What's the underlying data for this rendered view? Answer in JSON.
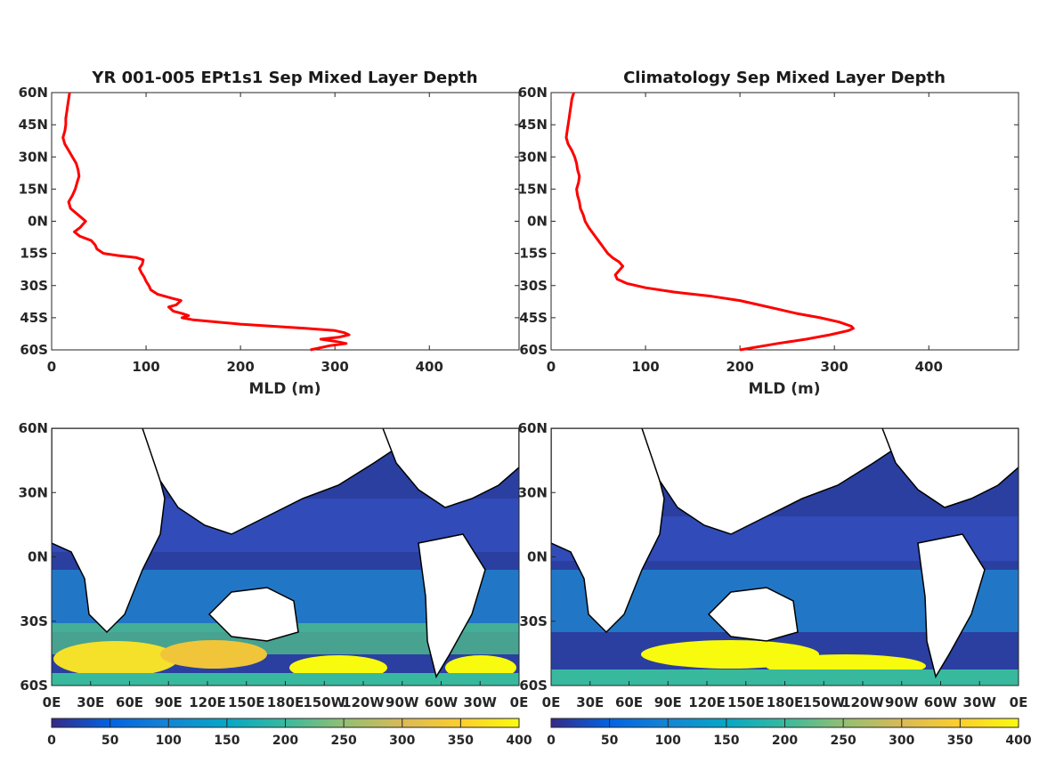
{
  "chart_data": [
    {
      "type": "line",
      "title": "YR 001-005 EPt1s1 Sep Mixed Layer Depth",
      "xlabel": "MLD (m)",
      "ylabel": "",
      "xlim": [
        0,
        495
      ],
      "ylim": [
        -60,
        60
      ],
      "xticks": [
        "0",
        "100",
        "200",
        "300",
        "400"
      ],
      "yticks": [
        "60N",
        "45N",
        "30N",
        "15N",
        "0N",
        "15S",
        "30S",
        "45S",
        "60S"
      ],
      "color": "#ff0000",
      "series": [
        {
          "y": [
            60,
            57,
            54,
            51,
            48,
            45,
            42,
            39,
            36,
            33,
            30,
            27,
            24,
            21,
            18,
            15,
            12,
            9,
            6,
            3,
            0,
            -3,
            -5,
            -7,
            -9,
            -11,
            -13,
            -15,
            -16,
            -17,
            -18,
            -20,
            -22,
            -24,
            -26,
            -28,
            -30,
            -32,
            -34,
            -36,
            -37,
            -39,
            -40,
            -42,
            -43,
            -44,
            -45,
            -46,
            -48,
            -50,
            -51,
            -52,
            -53,
            -54,
            -55,
            -56,
            -57,
            -58,
            -60
          ],
          "x": [
            19,
            18,
            17,
            16,
            15,
            15,
            14,
            12,
            14,
            18,
            22,
            26,
            28,
            29,
            27,
            25,
            22,
            18,
            20,
            28,
            36,
            30,
            24,
            30,
            42,
            46,
            48,
            55,
            70,
            90,
            97,
            96,
            93,
            95,
            98,
            100,
            103,
            105,
            112,
            128,
            137,
            132,
            124,
            129,
            138,
            145,
            138,
            150,
            200,
            270,
            300,
            310,
            315,
            305,
            285,
            300,
            312,
            295,
            274
          ]
        }
      ]
    },
    {
      "type": "line",
      "title": "Climatology Sep Mixed Layer Depth",
      "xlabel": "MLD (m)",
      "ylabel": "",
      "xlim": [
        0,
        495
      ],
      "ylim": [
        -60,
        60
      ],
      "xticks": [
        "0",
        "100",
        "200",
        "300",
        "400"
      ],
      "yticks": [
        "60N",
        "45N",
        "30N",
        "15N",
        "0N",
        "15S",
        "30S",
        "45S",
        "60S"
      ],
      "color": "#ff0000",
      "series": [
        {
          "y": [
            60,
            57,
            54,
            51,
            48,
            45,
            42,
            39,
            36,
            33,
            30,
            27,
            24,
            21,
            18,
            15,
            12,
            9,
            6,
            3,
            0,
            -3,
            -6,
            -9,
            -12,
            -15,
            -17,
            -19,
            -21,
            -23,
            -25,
            -27,
            -29,
            -31,
            -33,
            -35,
            -37,
            -39,
            -41,
            -43,
            -45,
            -47,
            -49,
            -50,
            -51,
            -53,
            -55,
            -57,
            -60
          ],
          "x": [
            24,
            22,
            21,
            20,
            19,
            18,
            17,
            16,
            18,
            22,
            25,
            27,
            28,
            30,
            29,
            27,
            28,
            30,
            31,
            34,
            36,
            40,
            45,
            50,
            55,
            60,
            65,
            72,
            76,
            72,
            68,
            70,
            80,
            100,
            130,
            170,
            200,
            220,
            240,
            260,
            285,
            305,
            318,
            320,
            315,
            295,
            270,
            240,
            200
          ]
        }
      ]
    },
    {
      "type": "heatmap",
      "title": "",
      "xticks": [
        "0E",
        "30E",
        "60E",
        "90E",
        "120E",
        "150E",
        "180E",
        "150W",
        "120W",
        "90W",
        "60W",
        "30W",
        "0E"
      ],
      "yticks": [
        "60N",
        "30N",
        "0N",
        "30S",
        "60S"
      ],
      "colorbar_ticks": [
        "0",
        "50",
        "100",
        "150",
        "200",
        "250",
        "300",
        "350",
        "400"
      ],
      "clim": [
        0,
        400
      ],
      "colormap": "parula"
    },
    {
      "type": "heatmap",
      "title": "",
      "xticks": [
        "0E",
        "30E",
        "60E",
        "90E",
        "120E",
        "150E",
        "180E",
        "150W",
        "120W",
        "90W",
        "60W",
        "30W",
        "0E"
      ],
      "yticks": [
        "60N",
        "30N",
        "0N",
        "30S",
        "60S"
      ],
      "colorbar_ticks": [
        "0",
        "50",
        "100",
        "150",
        "200",
        "250",
        "300",
        "350",
        "400"
      ],
      "clim": [
        0,
        400
      ],
      "colormap": "parula"
    }
  ]
}
